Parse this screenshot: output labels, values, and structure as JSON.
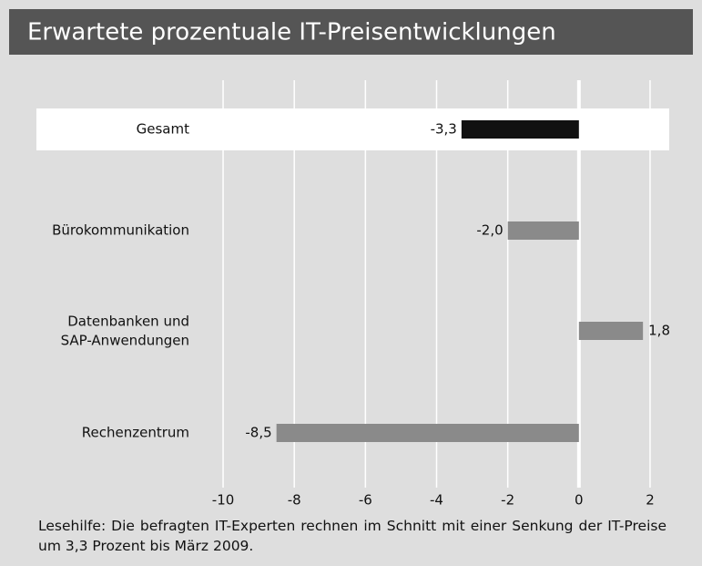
{
  "chart_data": {
    "type": "hbar",
    "title": "Erwartete prozentuale IT-Preisentwicklungen",
    "categories": [
      "Gesamt",
      "Bürokommunikation",
      "Datenbanken und\nSAP-Anwendungen",
      "Rechenzentrum"
    ],
    "values": [
      -3.3,
      -2.0,
      1.8,
      -8.5
    ],
    "value_labels": [
      "-3,3",
      "-2,0",
      "1,8",
      "-8,5"
    ],
    "colors": [
      "#111111",
      "#8a8a8a",
      "#8a8a8a",
      "#8a8a8a"
    ],
    "highlight": "Gesamt",
    "xlim": [
      -10.4,
      2.4
    ],
    "xticks": [
      -10,
      -8,
      -6,
      -4,
      -2,
      0,
      2
    ],
    "grid": true,
    "note": "Lesehilfe: Die befragten IT-Experten rechnen im Schnitt mit einer Senkung der IT-Preise um 3,3 Prozent bis März 2009."
  }
}
